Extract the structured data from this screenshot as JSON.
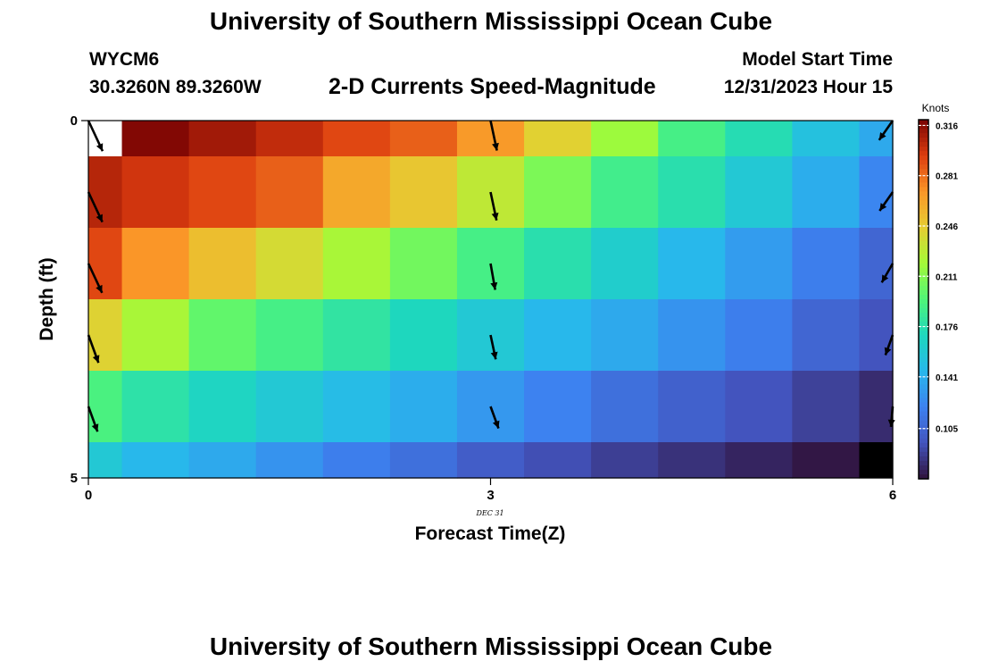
{
  "header": {
    "title": "University of Southern Mississippi Ocean Cube",
    "station": "WYCM6",
    "location": "30.3260N  89.3260W",
    "subtitle": "2-D Currents Speed-Magnitude",
    "model_start_label": "Model Start Time",
    "model_start_value": "12/31/2023 Hour 15"
  },
  "footer": {
    "title": "University of Southern Mississippi Ocean Cube"
  },
  "chart_data": {
    "type": "heatmap",
    "xlabel": "Forecast Time(Z)",
    "ylabel": "Depth (ft)",
    "x_ticks": [
      "0",
      "3",
      "6"
    ],
    "x_tick_values": [
      0,
      3,
      6
    ],
    "x_date_label": "DEC 31",
    "y_ticks": [
      "0",
      "5"
    ],
    "y_tick_values": [
      0,
      5
    ],
    "xlim": [
      0,
      6
    ],
    "ylim": [
      0,
      5
    ],
    "colorbar": {
      "unit": "Knots",
      "ticks": [
        "0.316",
        "0.281",
        "0.246",
        "0.211",
        "0.176",
        "0.141",
        "0.105"
      ],
      "tick_values": [
        0.316,
        0.281,
        0.246,
        0.211,
        0.176,
        0.141,
        0.105
      ],
      "range": [
        0.07,
        0.32
      ]
    },
    "x_edges": [
      0,
      0.25,
      0.75,
      1.25,
      1.75,
      2.25,
      2.75,
      3.25,
      3.75,
      4.25,
      4.75,
      5.25,
      5.75,
      6
    ],
    "y_edges": [
      0,
      0.5,
      1.5,
      2.5,
      3.5,
      4.5,
      5
    ],
    "cells": [
      [
        null,
        0.318,
        0.31,
        0.302,
        0.292,
        0.285,
        0.268,
        0.243,
        0.218,
        0.19,
        0.174,
        0.152,
        0.138
      ],
      [
        0.305,
        0.298,
        0.292,
        0.285,
        0.262,
        0.248,
        0.23,
        0.208,
        0.188,
        0.176,
        0.158,
        0.14,
        0.122
      ],
      [
        0.292,
        0.27,
        0.252,
        0.238,
        0.222,
        0.205,
        0.19,
        0.176,
        0.162,
        0.145,
        0.132,
        0.118,
        0.105
      ],
      [
        0.242,
        0.222,
        0.2,
        0.19,
        0.18,
        0.17,
        0.158,
        0.145,
        0.138,
        0.128,
        0.118,
        0.105,
        0.095
      ],
      [
        0.192,
        0.178,
        0.168,
        0.158,
        0.148,
        0.14,
        0.13,
        0.12,
        0.11,
        0.102,
        0.095,
        0.088,
        0.08
      ],
      [
        0.158,
        0.145,
        0.138,
        0.128,
        0.118,
        0.11,
        0.1,
        0.093,
        0.087,
        0.082,
        0.077,
        0.072,
        0.06
      ]
    ],
    "vectors": [
      {
        "t": 0,
        "depth": 0.5,
        "speed": 0.316,
        "dir_deg": 155
      },
      {
        "t": 0,
        "depth": 1.5,
        "speed": 0.305,
        "dir_deg": 155
      },
      {
        "t": 0,
        "depth": 2.5,
        "speed": 0.292,
        "dir_deg": 155
      },
      {
        "t": 0,
        "depth": 3.5,
        "speed": 0.242,
        "dir_deg": 160
      },
      {
        "t": 0,
        "depth": 4.5,
        "speed": 0.192,
        "dir_deg": 160
      },
      {
        "t": 3,
        "depth": 0.5,
        "speed": 0.26,
        "dir_deg": 168
      },
      {
        "t": 3,
        "depth": 1.5,
        "speed": 0.23,
        "dir_deg": 168
      },
      {
        "t": 3,
        "depth": 2.5,
        "speed": 0.19,
        "dir_deg": 170
      },
      {
        "t": 3,
        "depth": 3.5,
        "speed": 0.158,
        "dir_deg": 168
      },
      {
        "t": 3,
        "depth": 4.5,
        "speed": 0.13,
        "dir_deg": 160
      },
      {
        "t": 6,
        "depth": 0.5,
        "speed": 0.138,
        "dir_deg": 215
      },
      {
        "t": 6,
        "depth": 1.5,
        "speed": 0.122,
        "dir_deg": 215
      },
      {
        "t": 6,
        "depth": 2.5,
        "speed": 0.105,
        "dir_deg": 210
      },
      {
        "t": 6,
        "depth": 3.5,
        "speed": 0.095,
        "dir_deg": 200
      },
      {
        "t": 6,
        "depth": 4.5,
        "speed": 0.08,
        "dir_deg": 185
      }
    ]
  }
}
